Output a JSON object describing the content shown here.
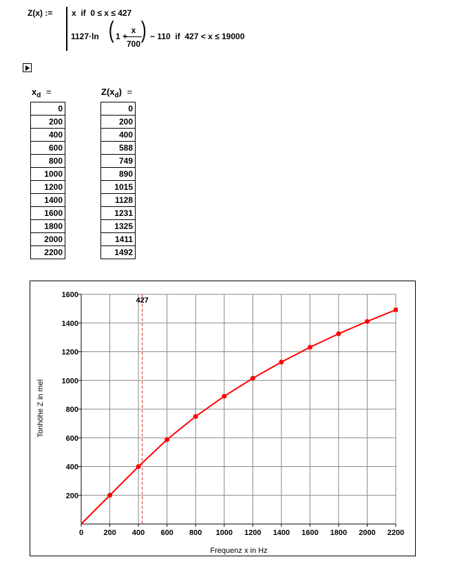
{
  "formula": {
    "lhs": "Z(x) :=",
    "case1": "x  if  0 ≤ x ≤ 427",
    "case2_coef": "1127·ln",
    "case2_one": "1 +",
    "frac_num": "x",
    "frac_den": "700",
    "case2_tail": "− 110  if  427 < x ≤ 19000"
  },
  "icons": {
    "toggle": "play-triangle-icon"
  },
  "table_xd": {
    "header_main": "x",
    "header_sub": "d",
    "header_eq": "=",
    "values": [
      "0",
      "200",
      "400",
      "600",
      "800",
      "1000",
      "1200",
      "1400",
      "1600",
      "1800",
      "2000",
      "2200"
    ]
  },
  "table_zxd": {
    "header_main": "Z(x",
    "header_sub": "d",
    "header_close": ")",
    "header_eq": "=",
    "values": [
      "0",
      "200",
      "400",
      "588",
      "749",
      "890",
      "1015",
      "1128",
      "1231",
      "1325",
      "1411",
      "1492"
    ]
  },
  "chart_data": {
    "type": "line",
    "xlabel": "Frequenz x in Hz",
    "ylabel": "Tonhöhe Z in mel",
    "xlim": [
      0,
      2200
    ],
    "ylim": [
      0,
      1600
    ],
    "xticks": [
      0,
      200,
      400,
      600,
      800,
      1000,
      1200,
      1400,
      1600,
      1800,
      2000,
      2200
    ],
    "yticks": [
      200,
      400,
      600,
      800,
      1000,
      1200,
      1400,
      1600
    ],
    "grid": true,
    "series": [
      {
        "color": "#ff0000",
        "x": [
          0,
          200,
          400,
          600,
          800,
          1000,
          1200,
          1400,
          1600,
          1800,
          2000,
          2200
        ],
        "y": [
          0,
          200,
          400,
          588,
          749,
          890,
          1015,
          1128,
          1231,
          1325,
          1411,
          1492
        ]
      }
    ],
    "marker_line": {
      "x": 427,
      "label": "427",
      "color": "#d02020",
      "style": "dashed"
    }
  }
}
